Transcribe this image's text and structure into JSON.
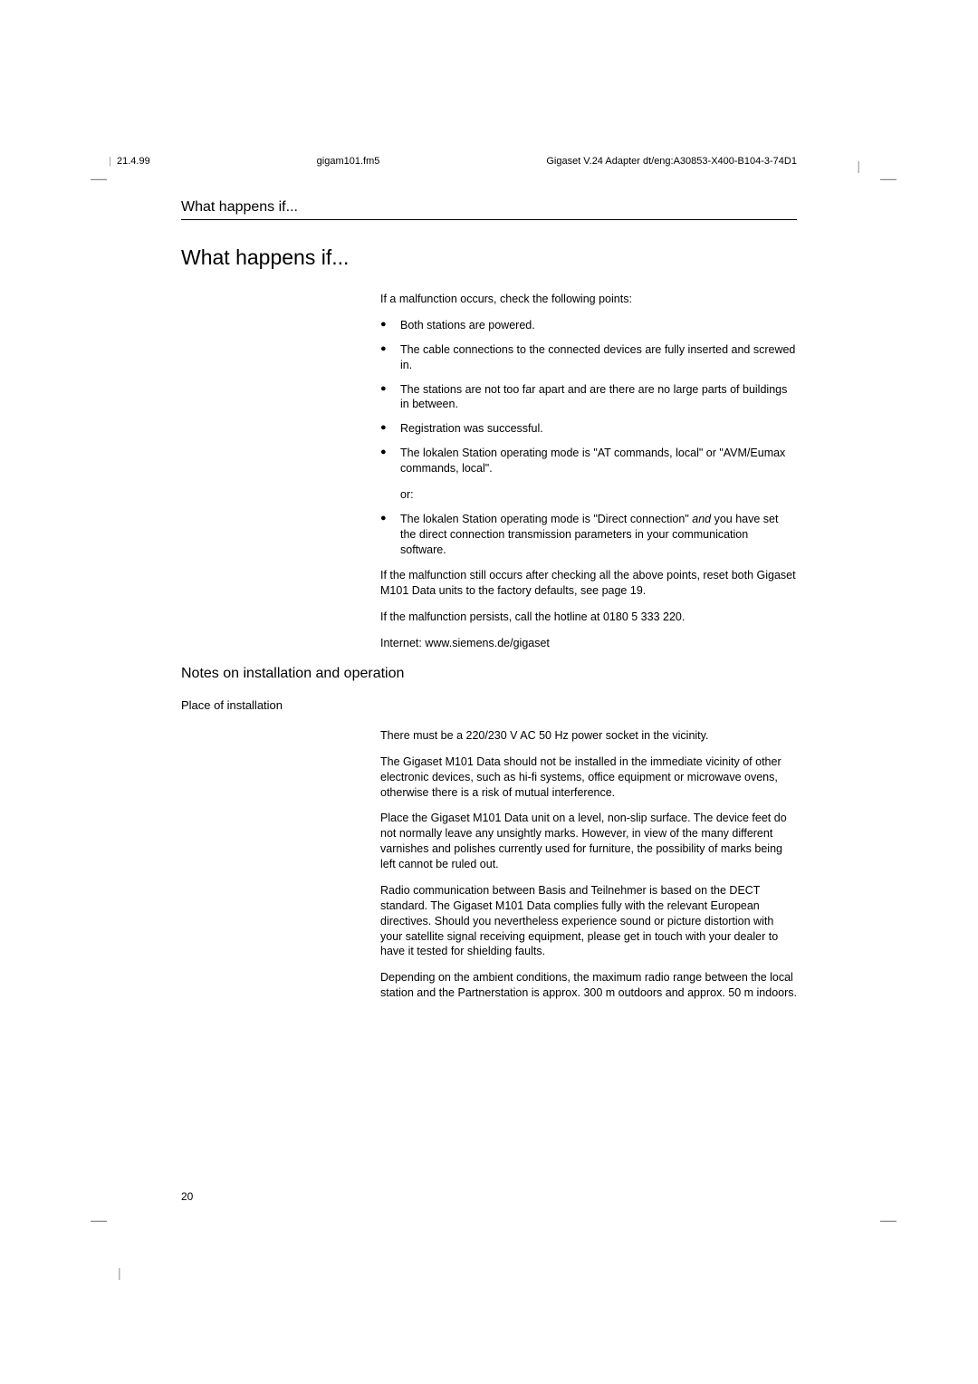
{
  "header": {
    "date": "21.4.99",
    "file": "gigam101.fm5",
    "doc": "Gigaset V.24 Adapter dt/eng:A30853-X400-B104-3-74D1"
  },
  "running_head": "What happens if...",
  "h1": "What happens if...",
  "intro": "If a malfunction occurs, check the following points:",
  "bullets1": [
    "Both stations are powered.",
    "The cable connections to the connected devices are fully inserted and screwed in.",
    "The stations are not too far apart and are there are no large parts of buildings in between.",
    "Registration was successful.",
    "The lokalen Station operating mode is \"AT commands, local\" or \"AVM/Eumax commands, local\"."
  ],
  "or_label": "or:",
  "bullet2_prefix": "The lokalen Station operating mode is \"Direct connection\" ",
  "bullet2_italic": "and",
  "bullet2_suffix": " you have set the direct connection transmission parameters in your communication software.",
  "after1": "If the malfunction still occurs after checking all the above points, reset both Gigaset M101 Data units to the factory defaults, see page 19.",
  "after2": "If the malfunction persists, call the hotline at 0180 5 333 220.",
  "after3": "Internet: www.siemens.de/gigaset",
  "h2": "Notes on installation and operation",
  "h3": "Place of installation",
  "install_paras": [
    "There must be a 220/230 V AC 50 Hz power socket in the vicinity.",
    "The Gigaset M101 Data should not be installed in the immediate vicinity of other electronic devices, such as hi-fi systems, office equipment or microwave ovens, otherwise there is a risk of mutual interference.",
    "Place the Gigaset M101 Data unit on a level, non-slip surface. The device feet do not normally leave any unsightly marks. However, in view of the many different varnishes and polishes currently used for furniture, the possibility of marks being left cannot be ruled out.",
    "Radio communication between Basis and Teilnehmer is based on the DECT standard. The Gigaset M101 Data complies fully with the relevant European directives. Should you nevertheless experience sound or picture distortion with your satellite signal receiving equipment, please get in touch with your dealer to have it tested for shielding faults.",
    "Depending on the ambient conditions, the maximum radio range between the local station and the Partnerstation is approx. 300 m outdoors and approx. 50 m indoors."
  ],
  "page_number": "20"
}
